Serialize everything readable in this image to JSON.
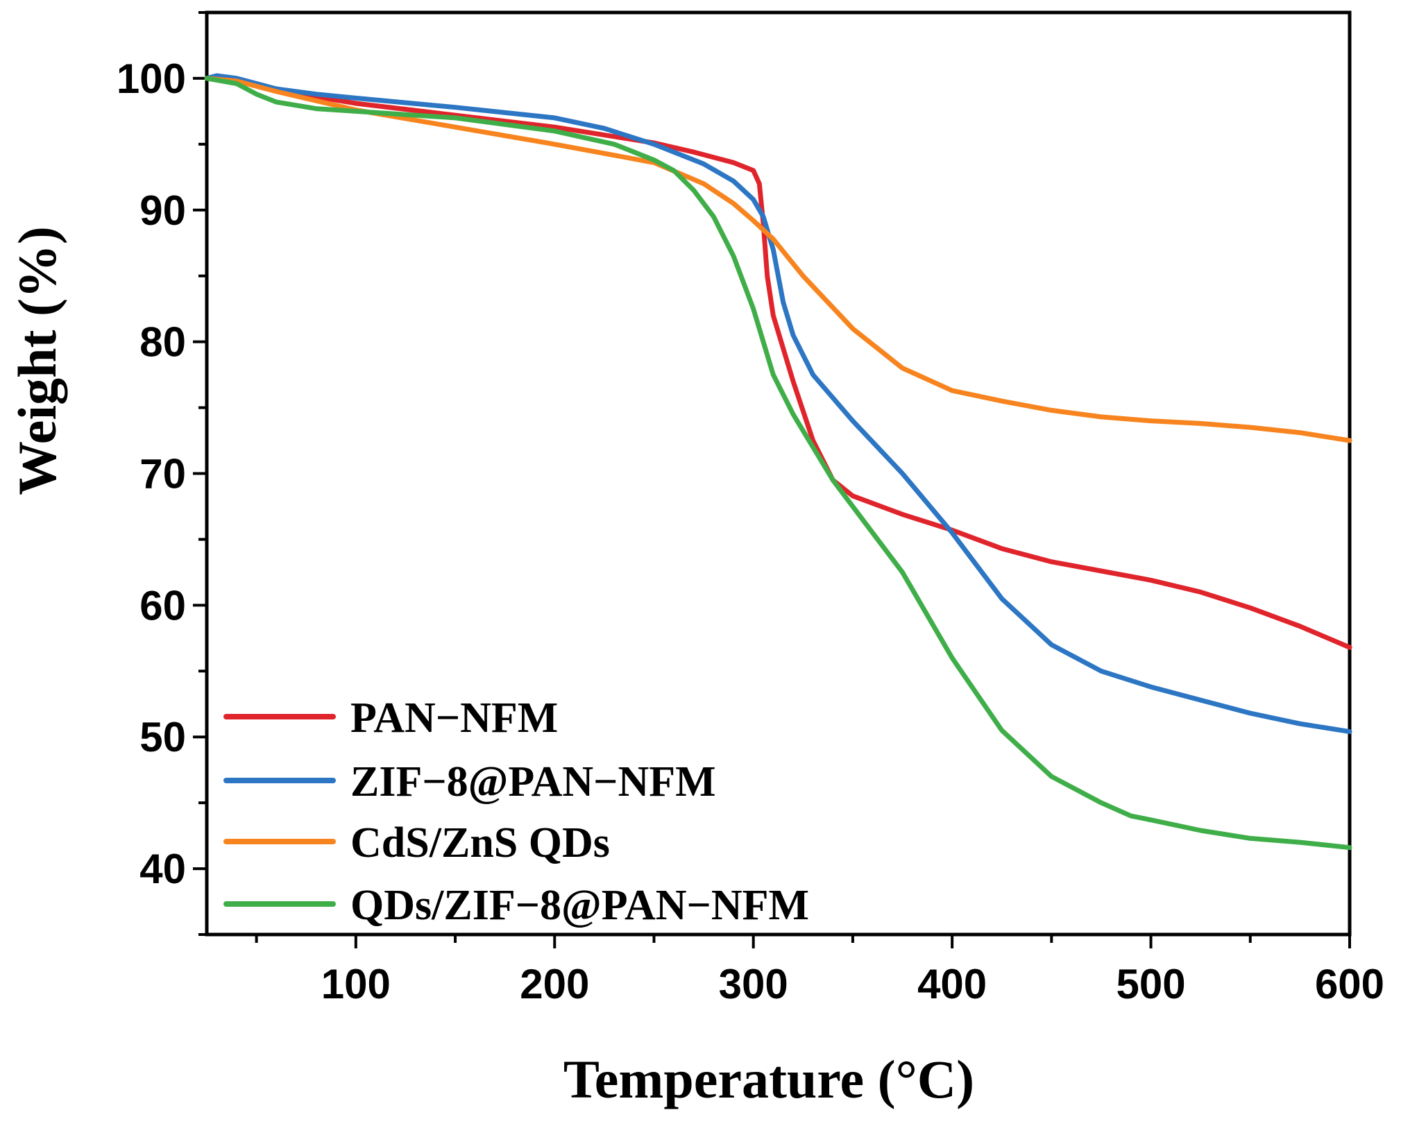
{
  "chart_data": {
    "type": "line",
    "title": "",
    "xlabel": "Temperature (°C)",
    "ylabel": "Weight (%)",
    "xlim": [
      25,
      600
    ],
    "ylim": [
      35,
      105
    ],
    "x_ticks": [
      100,
      200,
      300,
      400,
      500,
      600
    ],
    "y_ticks": [
      40,
      50,
      60,
      70,
      80,
      90,
      100
    ],
    "grid": false,
    "legend_position": "bottom-left",
    "series": [
      {
        "name": "PAN−NFM",
        "color": "#e0242b",
        "points": [
          [
            25,
            100
          ],
          [
            30,
            100.1
          ],
          [
            40,
            99.8
          ],
          [
            60,
            99.2
          ],
          [
            80,
            98.6
          ],
          [
            100,
            98.1
          ],
          [
            150,
            97.2
          ],
          [
            200,
            96.3
          ],
          [
            250,
            95.1
          ],
          [
            270,
            94.4
          ],
          [
            290,
            93.6
          ],
          [
            300,
            93.0
          ],
          [
            303,
            92.0
          ],
          [
            305,
            89.0
          ],
          [
            307,
            85.0
          ],
          [
            310,
            82.0
          ],
          [
            320,
            77.0
          ],
          [
            330,
            72.5
          ],
          [
            340,
            69.5
          ],
          [
            350,
            68.3
          ],
          [
            375,
            66.9
          ],
          [
            400,
            65.7
          ],
          [
            425,
            64.3
          ],
          [
            450,
            63.3
          ],
          [
            475,
            62.6
          ],
          [
            500,
            61.9
          ],
          [
            525,
            61.0
          ],
          [
            550,
            59.8
          ],
          [
            575,
            58.4
          ],
          [
            600,
            56.8
          ]
        ]
      },
      {
        "name": "ZIF−8@PAN−NFM",
        "color": "#2c76c4",
        "points": [
          [
            25,
            100
          ],
          [
            30,
            100.2
          ],
          [
            40,
            100
          ],
          [
            60,
            99.2
          ],
          [
            80,
            98.8
          ],
          [
            100,
            98.5
          ],
          [
            150,
            97.8
          ],
          [
            200,
            97.0
          ],
          [
            225,
            96.2
          ],
          [
            250,
            95.0
          ],
          [
            275,
            93.5
          ],
          [
            290,
            92.2
          ],
          [
            300,
            90.8
          ],
          [
            305,
            89.5
          ],
          [
            310,
            87.0
          ],
          [
            315,
            83.0
          ],
          [
            320,
            80.5
          ],
          [
            330,
            77.5
          ],
          [
            350,
            74.0
          ],
          [
            375,
            70.0
          ],
          [
            400,
            65.5
          ],
          [
            425,
            60.5
          ],
          [
            450,
            57.0
          ],
          [
            475,
            55.0
          ],
          [
            500,
            53.8
          ],
          [
            525,
            52.8
          ],
          [
            550,
            51.8
          ],
          [
            575,
            51.0
          ],
          [
            600,
            50.4
          ]
        ]
      },
      {
        "name": "CdS/ZnS QDs",
        "color": "#f7841e",
        "points": [
          [
            25,
            100
          ],
          [
            40,
            99.8
          ],
          [
            60,
            99.0
          ],
          [
            80,
            98.3
          ],
          [
            100,
            97.6
          ],
          [
            150,
            96.3
          ],
          [
            200,
            95.0
          ],
          [
            250,
            93.6
          ],
          [
            275,
            92.0
          ],
          [
            290,
            90.5
          ],
          [
            300,
            89.2
          ],
          [
            310,
            87.8
          ],
          [
            325,
            85.0
          ],
          [
            350,
            81.0
          ],
          [
            375,
            78.0
          ],
          [
            400,
            76.3
          ],
          [
            425,
            75.5
          ],
          [
            450,
            74.8
          ],
          [
            475,
            74.3
          ],
          [
            500,
            74.0
          ],
          [
            525,
            73.8
          ],
          [
            550,
            73.5
          ],
          [
            575,
            73.1
          ],
          [
            600,
            72.5
          ]
        ]
      },
      {
        "name": "QDs/ZIF−8@PAN−NFM",
        "color": "#3fae49",
        "points": [
          [
            25,
            100
          ],
          [
            40,
            99.6
          ],
          [
            50,
            98.8
          ],
          [
            60,
            98.2
          ],
          [
            80,
            97.7
          ],
          [
            100,
            97.5
          ],
          [
            150,
            97.0
          ],
          [
            200,
            96.0
          ],
          [
            230,
            95.0
          ],
          [
            250,
            93.8
          ],
          [
            260,
            93.0
          ],
          [
            270,
            91.5
          ],
          [
            280,
            89.5
          ],
          [
            290,
            86.5
          ],
          [
            300,
            82.5
          ],
          [
            310,
            77.5
          ],
          [
            320,
            74.5
          ],
          [
            330,
            72.0
          ],
          [
            340,
            69.5
          ],
          [
            350,
            67.5
          ],
          [
            375,
            62.5
          ],
          [
            400,
            56.0
          ],
          [
            425,
            50.5
          ],
          [
            450,
            47.0
          ],
          [
            475,
            45.0
          ],
          [
            490,
            44.0
          ],
          [
            500,
            43.7
          ],
          [
            525,
            42.9
          ],
          [
            550,
            42.3
          ],
          [
            575,
            42.0
          ],
          [
            600,
            41.6
          ]
        ]
      }
    ]
  }
}
